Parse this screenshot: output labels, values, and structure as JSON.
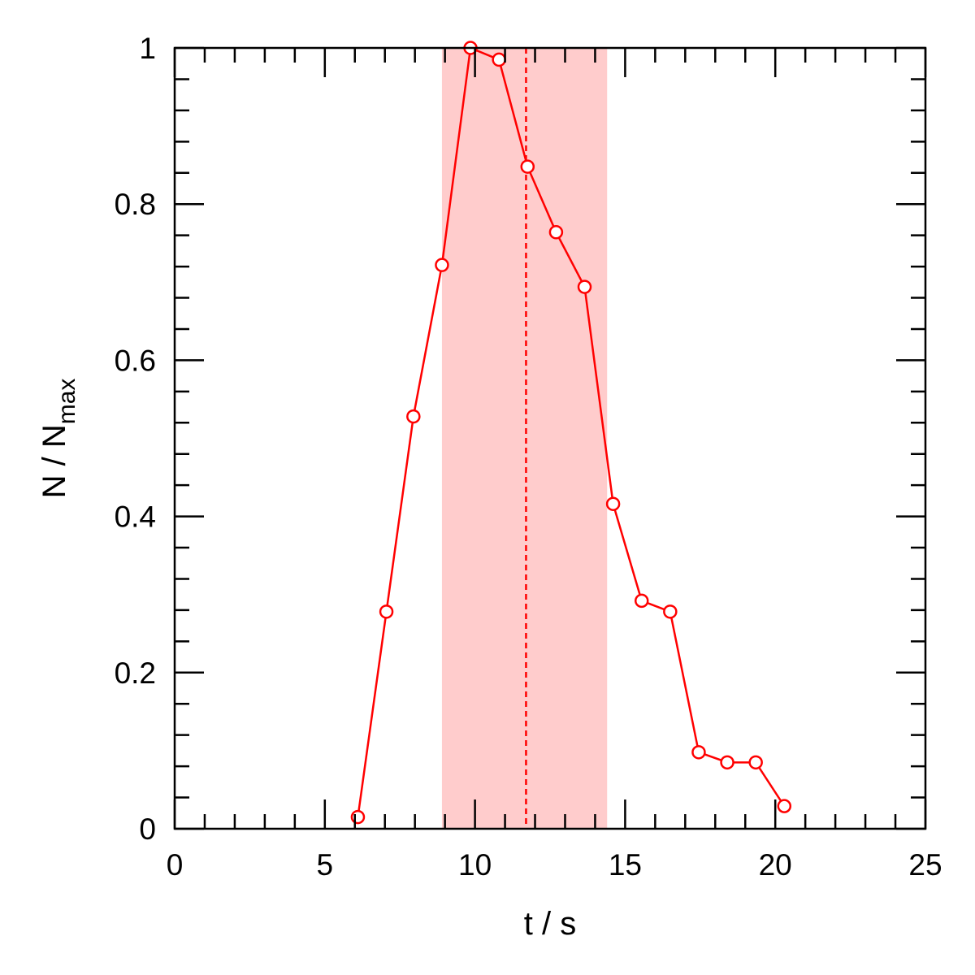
{
  "chart_data": {
    "type": "line",
    "xlabel": "t / s",
    "ylabel": {
      "main": "N / N",
      "subscript": "max"
    },
    "xlim": [
      0,
      25
    ],
    "ylim": [
      0,
      1
    ],
    "x_ticks": [
      0,
      5,
      10,
      15,
      20,
      25
    ],
    "x_tick_labels": [
      "0",
      "5",
      "10",
      "15",
      "20",
      "25"
    ],
    "y_ticks": [
      0,
      0.2,
      0.4,
      0.6,
      0.8,
      1
    ],
    "y_tick_labels": [
      "0",
      "0.2",
      "0.4",
      "0.6",
      "0.8",
      "1"
    ],
    "x_minor_step": 1,
    "y_minor_step": 0.04,
    "grid": false,
    "series": [
      {
        "x": [
          6.1,
          7.05,
          7.95,
          8.9,
          9.85,
          10.8,
          11.75,
          12.7,
          13.65,
          14.6,
          15.55,
          16.5,
          17.45,
          18.4,
          19.35,
          20.3
        ],
        "y": [
          0.015,
          0.278,
          0.528,
          0.722,
          1.0,
          0.985,
          0.848,
          0.764,
          0.694,
          0.416,
          0.292,
          0.278,
          0.098,
          0.085,
          0.085,
          0.029
        ],
        "color": "#ff0000",
        "marker": "open-circle"
      }
    ],
    "shaded_region": {
      "x_range": [
        8.9,
        14.4
      ],
      "color": "#ffcccc"
    },
    "vertical_line": {
      "x": 11.7,
      "style": "dashed",
      "color": "#ff0000"
    }
  }
}
